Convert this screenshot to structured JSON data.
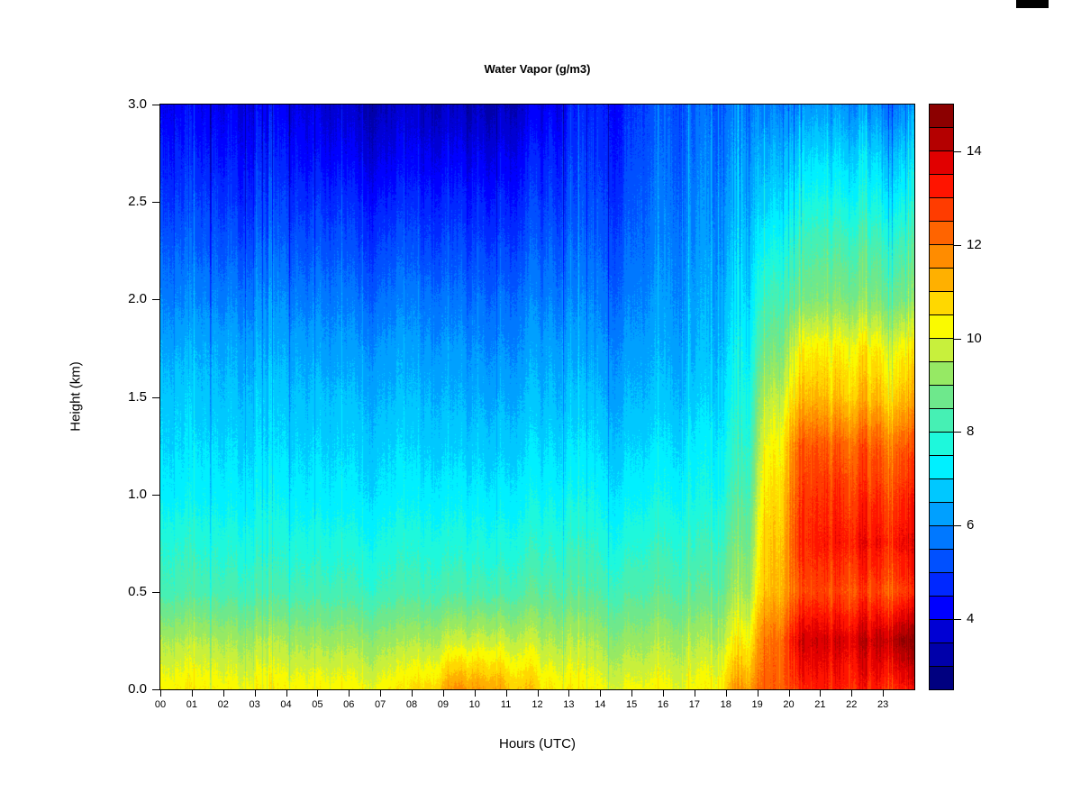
{
  "chart_data": {
    "type": "heatmap",
    "title": "Water Vapor (g/m3)",
    "xlabel": "Hours (UTC)",
    "ylabel": "Height (km)",
    "x_tick_labels": [
      "00",
      "01",
      "02",
      "03",
      "04",
      "05",
      "06",
      "07",
      "08",
      "09",
      "10",
      "11",
      "12",
      "13",
      "14",
      "15",
      "16",
      "17",
      "18",
      "19",
      "20",
      "21",
      "22",
      "23"
    ],
    "x_range": [
      0,
      24
    ],
    "y_tick_labels": [
      "0.0",
      "0.5",
      "1.0",
      "1.5",
      "2.0",
      "2.5",
      "3.0"
    ],
    "y_range": [
      0,
      3
    ],
    "z_range": [
      2.5,
      15
    ],
    "z_step": 0.5,
    "legend_position": "right",
    "grid": "off",
    "colorbar_tick_values": [
      4,
      6,
      8,
      10,
      12,
      14
    ],
    "color_scale": [
      "#000080",
      "#0000AA",
      "#0000D4",
      "#0000FE",
      "#0028FF",
      "#0050FF",
      "#0078FF",
      "#00A0FF",
      "#00C8FF",
      "#00F0FF",
      "#1EF8DC",
      "#46F0B4",
      "#6EE88C",
      "#96E964",
      "#C8F03C",
      "#FAFA00",
      "#FFD800",
      "#FFB000",
      "#FF8C00",
      "#FF6400",
      "#FF3C00",
      "#FF1400",
      "#E10000",
      "#B40000",
      "#8C0000"
    ],
    "heights_km": [
      0,
      0.25,
      0.5,
      0.75,
      1.0,
      1.25,
      1.5,
      1.75,
      2.0,
      2.25,
      2.5,
      2.75,
      3.0
    ],
    "hours": [
      0,
      1,
      2,
      3,
      4,
      5,
      6,
      7,
      8,
      9,
      10,
      11,
      12,
      13,
      14,
      15,
      16,
      17,
      18,
      19,
      20,
      21,
      22,
      23
    ],
    "values": [
      [
        10.4,
        9.5,
        8.3,
        7.9,
        7.3,
        7.0,
        6.8,
        6.4,
        5.9,
        5.5,
        5.0,
        4.6,
        4.2
      ],
      [
        10.4,
        9.5,
        8.3,
        7.8,
        7.3,
        7.0,
        6.7,
        6.4,
        5.9,
        5.4,
        5.0,
        4.5,
        4.1
      ],
      [
        10.3,
        9.4,
        8.3,
        7.8,
        7.3,
        7.0,
        6.7,
        6.4,
        5.9,
        5.4,
        4.9,
        4.5,
        4.1
      ],
      [
        10.3,
        9.4,
        8.2,
        7.7,
        7.3,
        6.9,
        6.7,
        6.3,
        5.9,
        5.4,
        4.9,
        4.4,
        4.0
      ],
      [
        10.3,
        9.3,
        8.2,
        7.7,
        7.2,
        6.9,
        6.6,
        6.3,
        5.8,
        5.3,
        4.8,
        4.3,
        3.9
      ],
      [
        10.3,
        9.3,
        8.2,
        7.7,
        7.2,
        6.9,
        6.6,
        6.2,
        5.8,
        5.3,
        4.8,
        4.2,
        3.7
      ],
      [
        10.3,
        9.3,
        8.2,
        7.7,
        7.2,
        6.9,
        6.6,
        6.2,
        5.7,
        5.2,
        4.7,
        4.1,
        3.6
      ],
      [
        10.4,
        9.3,
        8.2,
        7.7,
        7.2,
        6.9,
        6.5,
        6.2,
        5.7,
        5.2,
        4.6,
        4.0,
        3.5
      ],
      [
        10.7,
        9.4,
        8.2,
        7.7,
        7.2,
        6.8,
        6.5,
        6.1,
        5.7,
        5.1,
        4.6,
        4.0,
        3.4
      ],
      [
        11.6,
        9.7,
        8.3,
        7.7,
        7.2,
        6.8,
        6.4,
        6.1,
        5.6,
        5.1,
        4.6,
        4.0,
        3.4
      ],
      [
        11.5,
        9.8,
        8.3,
        7.7,
        7.2,
        6.8,
        6.4,
        6.0,
        5.6,
        5.1,
        4.6,
        4.0,
        3.4
      ],
      [
        10.9,
        9.6,
        8.3,
        7.7,
        7.2,
        6.8,
        6.4,
        6.0,
        5.6,
        5.1,
        4.6,
        4.1,
        3.5
      ],
      [
        10.3,
        9.3,
        8.3,
        7.7,
        7.2,
        6.8,
        6.4,
        6.1,
        5.6,
        5.2,
        4.7,
        4.3,
        3.8
      ],
      [
        10.2,
        9.3,
        8.3,
        7.8,
        7.3,
        6.9,
        6.5,
        6.1,
        5.7,
        5.3,
        4.9,
        4.6,
        4.3
      ],
      [
        10.2,
        9.3,
        8.4,
        7.8,
        7.3,
        6.9,
        6.5,
        6.2,
        5.8,
        5.5,
        5.2,
        4.9,
        4.7
      ],
      [
        10.2,
        9.3,
        8.4,
        7.9,
        7.4,
        7.0,
        6.6,
        6.3,
        6.0,
        5.7,
        5.5,
        5.3,
        5.1
      ],
      [
        10.2,
        9.4,
        8.5,
        8.0,
        7.5,
        7.1,
        6.7,
        6.4,
        6.2,
        6.0,
        5.8,
        5.6,
        5.4
      ],
      [
        10.4,
        9.5,
        8.6,
        8.1,
        7.6,
        7.3,
        6.9,
        6.6,
        6.4,
        6.2,
        6.0,
        5.8,
        5.6
      ],
      [
        11.5,
        10.3,
        9.3,
        8.8,
        8.3,
        7.9,
        7.6,
        7.3,
        7.0,
        6.7,
        6.4,
        6.1,
        5.8
      ],
      [
        12.6,
        12.4,
        11.4,
        11.2,
        10.9,
        10.5,
        9.9,
        9.1,
        8.4,
        7.8,
        7.2,
        6.7,
        6.1
      ],
      [
        13.1,
        13.9,
        12.6,
        13.0,
        12.8,
        12.4,
        11.1,
        10.3,
        8.9,
        8.3,
        7.6,
        6.9,
        6.1
      ],
      [
        13.1,
        13.8,
        12.6,
        13.2,
        12.9,
        12.3,
        11.0,
        10.3,
        9.0,
        8.4,
        7.6,
        6.9,
        6.1
      ],
      [
        13.2,
        14.0,
        12.7,
        13.4,
        12.9,
        12.4,
        11.1,
        10.4,
        9.0,
        8.4,
        7.6,
        6.9,
        6.0
      ],
      [
        13.3,
        14.6,
        12.8,
        13.5,
        13.0,
        12.4,
        11.1,
        10.3,
        8.9,
        8.3,
        7.5,
        6.8,
        5.9
      ]
    ],
    "noise": {
      "column_amp_base": 0.5,
      "column_amp_upper_extra": 0.35,
      "column_amp_plume_extra": 0.55,
      "streak_neg_prob": 0.045,
      "streak_pos_prob": 0.042,
      "dither_amp": 0.28
    }
  },
  "decor": {
    "background": "#FFFFFF",
    "axis_color": "#000000",
    "corner_mark_color": "#000000"
  }
}
